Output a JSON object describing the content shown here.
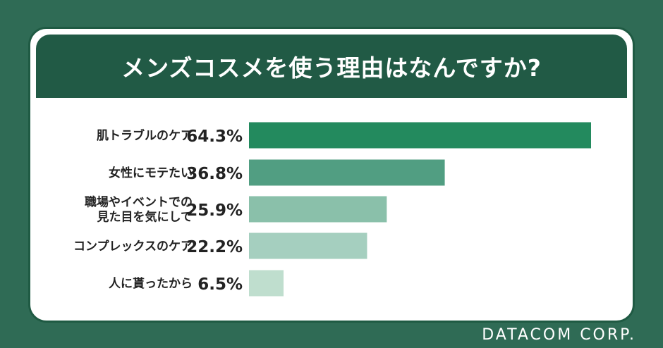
{
  "chart_data": {
    "type": "bar",
    "orientation": "horizontal",
    "title": "メンズコスメを使う理由はなんですか?",
    "categories": [
      [
        "肌トラブルのケア"
      ],
      [
        "女性にモテたい"
      ],
      [
        "職場やイベントでの",
        "見た目を気にして"
      ],
      [
        "コンプレックスのケア"
      ],
      [
        "人に貰ったから"
      ]
    ],
    "values": [
      64.3,
      36.8,
      25.9,
      22.2,
      6.5
    ],
    "value_labels": [
      "64.3%",
      "36.8%",
      "25.9%",
      "22.2%",
      "6.5%"
    ],
    "unit": "%",
    "colors": [
      "#238a5e",
      "#519e82",
      "#8ac0aa",
      "#a5cfbf",
      "#bfdece"
    ],
    "grid": false,
    "legend": "none"
  },
  "footer": {
    "brand": "DATACOM CORP."
  }
}
